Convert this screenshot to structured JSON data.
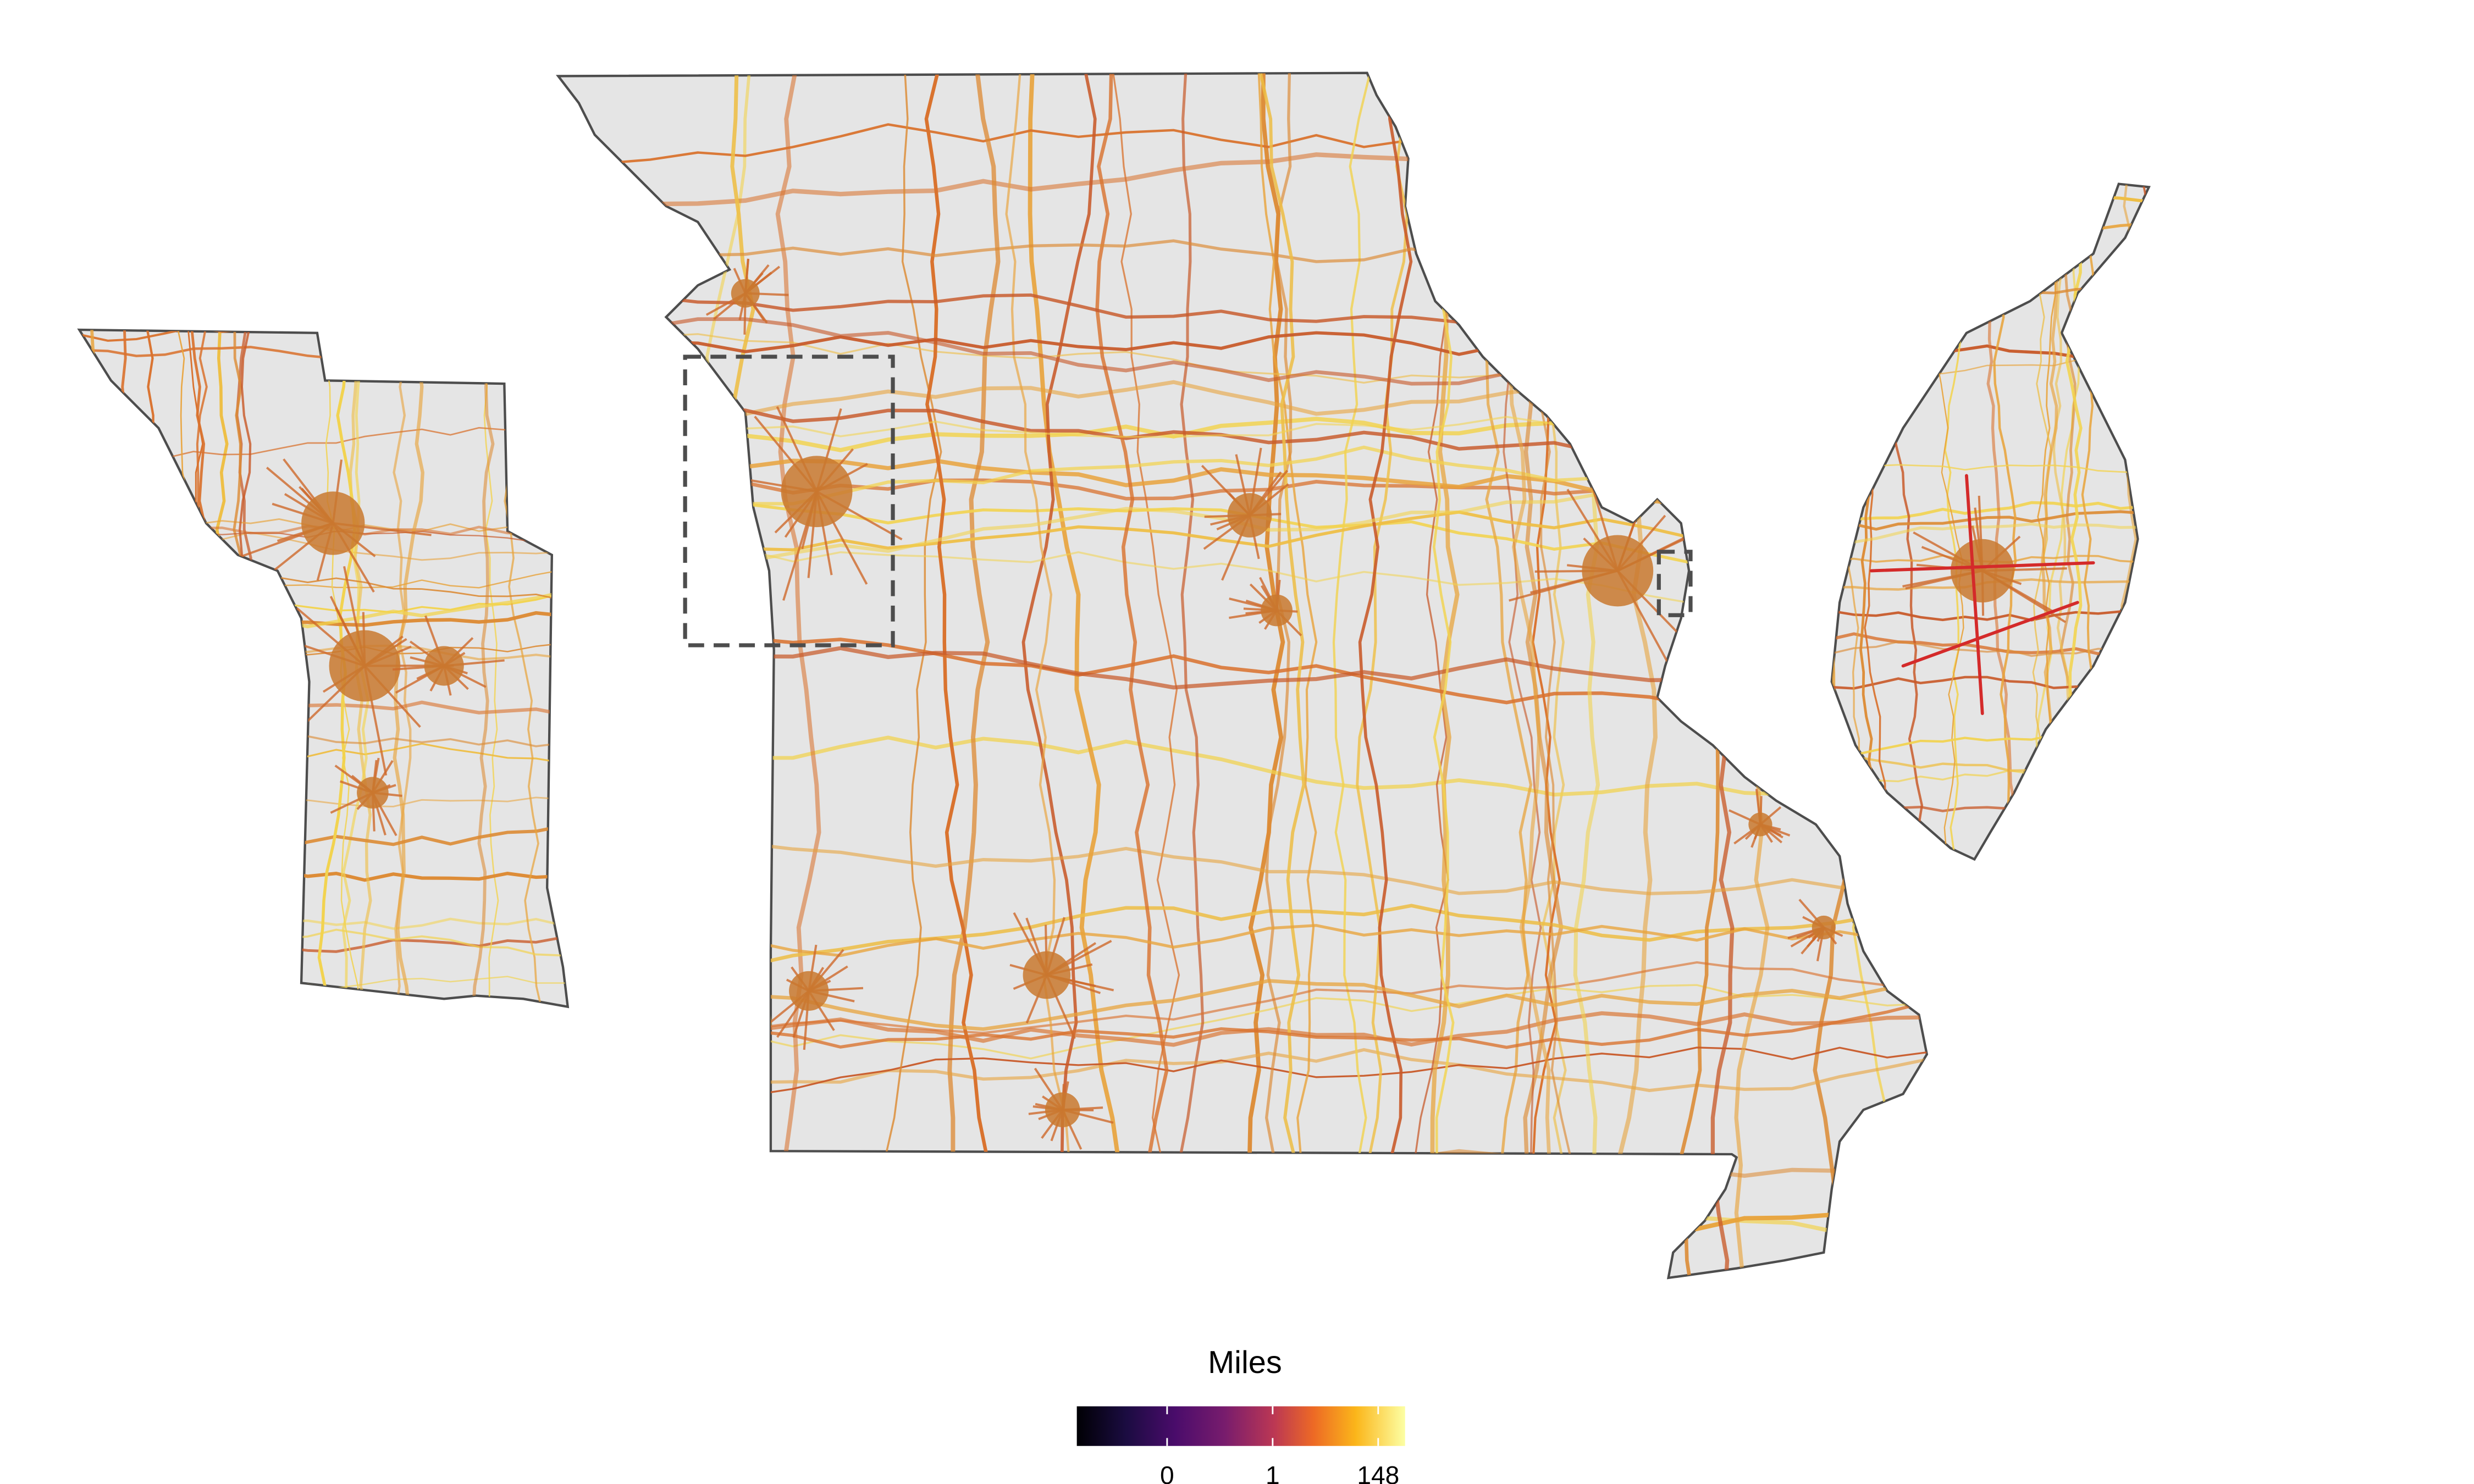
{
  "legend": {
    "title": "Miles",
    "ticks": [
      0,
      1,
      148
    ]
  }
}
